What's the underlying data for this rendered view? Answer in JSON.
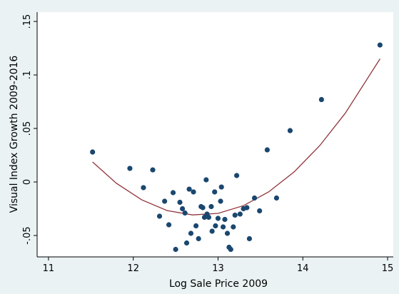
{
  "chart_data": {
    "type": "scatter",
    "x_label": "Log Sale Price 2009",
    "y_label": "Visual Index Growth 2009-2016",
    "xlim": [
      10.866,
      15.067
    ],
    "ylim": [
      -0.07,
      0.1587
    ],
    "xticks": [
      11,
      12,
      13,
      14,
      15
    ],
    "yticks": [
      {
        "value": -0.05,
        "label": "-.05"
      },
      0,
      {
        "value": 0.05,
        "label": ".05"
      },
      {
        "value": 0.1,
        "label": ".1"
      },
      {
        "value": 0.15,
        "label": ".15"
      }
    ],
    "grid": false,
    "points": {
      "color": "#1a476f",
      "x": [
        11.52,
        11.96,
        12.12,
        12.23,
        12.31,
        12.37,
        12.42,
        12.47,
        12.5,
        12.55,
        12.58,
        12.61,
        12.63,
        12.66,
        12.68,
        12.71,
        12.74,
        12.77,
        12.8,
        12.82,
        12.84,
        12.86,
        12.87,
        12.89,
        12.92,
        12.93,
        12.96,
        12.97,
        13.0,
        13.03,
        13.04,
        13.06,
        13.08,
        13.11,
        13.13,
        13.15,
        13.18,
        13.2,
        13.22,
        13.26,
        13.3,
        13.34,
        13.37,
        13.43,
        13.49,
        13.58,
        13.69,
        13.85,
        14.22,
        14.91
      ],
      "values": [
        0.028,
        0.0127,
        -0.0053,
        0.0113,
        -0.032,
        -0.018,
        -0.04,
        -0.01,
        -0.063,
        -0.019,
        -0.025,
        -0.029,
        -0.057,
        -0.0067,
        -0.048,
        -0.0093,
        -0.041,
        -0.053,
        -0.023,
        -0.024,
        -0.033,
        0.002,
        -0.03,
        -0.033,
        -0.023,
        -0.046,
        -0.0093,
        -0.041,
        -0.034,
        -0.018,
        -0.0047,
        -0.042,
        -0.035,
        -0.048,
        -0.061,
        -0.063,
        -0.042,
        -0.031,
        0.006,
        -0.03,
        -0.025,
        -0.024,
        -0.053,
        -0.015,
        -0.027,
        0.03,
        -0.015,
        0.048,
        0.077,
        0.128
      ]
    },
    "fit": {
      "color": "#90353b",
      "x": [
        11.52,
        11.8,
        12.1,
        12.4,
        12.7,
        13.0,
        13.3,
        13.6,
        13.9,
        14.2,
        14.5,
        14.91
      ],
      "values": [
        0.0187,
        -0.0011,
        -0.0167,
        -0.0267,
        -0.0308,
        -0.0293,
        -0.0221,
        -0.0091,
        0.0096,
        0.034,
        0.0642,
        0.115
      ]
    }
  }
}
